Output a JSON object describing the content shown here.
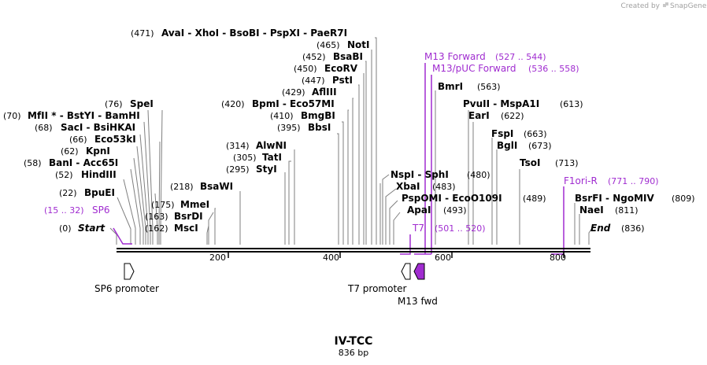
{
  "credit": {
    "text": "Created by",
    "brand": "SnapGene"
  },
  "plasmid": {
    "name": "IV-TCC",
    "length": "836 bp"
  },
  "axis": {
    "ticks": [
      "200",
      "400",
      "600",
      "800"
    ]
  },
  "sites": [
    {
      "pos": "(0)",
      "label": "Start"
    },
    {
      "pos": "(15 .. 32)",
      "label": "SP6"
    },
    {
      "pos": "(22)",
      "label": "BpuEI"
    },
    {
      "pos": "(52)",
      "label": "HindIII"
    },
    {
      "pos": "(58)",
      "label": "BanI  -  Acc65I"
    },
    {
      "pos": "(62)",
      "label": "KpnI"
    },
    {
      "pos": "(66)",
      "label": "Eco53kI"
    },
    {
      "pos": "(68)",
      "label": "SacI  -  BsiHKAI"
    },
    {
      "pos": "(70)",
      "label": "MfII *  -  BstYI  -  BamHI"
    },
    {
      "pos": "(76)",
      "label": "SpeI"
    },
    {
      "pos": "(162)",
      "label": "MscI"
    },
    {
      "pos": "(163)",
      "label": "BsrDI"
    },
    {
      "pos": "(175)",
      "label": "MmeI"
    },
    {
      "pos": "(218)",
      "label": "BsaWI"
    },
    {
      "pos": "(295)",
      "label": "StyI"
    },
    {
      "pos": "(305)",
      "label": "TatI"
    },
    {
      "pos": "(314)",
      "label": "AlwNI"
    },
    {
      "pos": "(395)",
      "label": "BbsI"
    },
    {
      "pos": "(410)",
      "label": "BmgBI"
    },
    {
      "pos": "(420)",
      "label": "BpmI  -  Eco57MI"
    },
    {
      "pos": "(429)",
      "label": "AflIII"
    },
    {
      "pos": "(447)",
      "label": "PstI"
    },
    {
      "pos": "(450)",
      "label": "EcoRV"
    },
    {
      "pos": "(452)",
      "label": "BsaBI"
    },
    {
      "pos": "(465)",
      "label": "NotI"
    },
    {
      "pos": "(471)",
      "label": "AvaI  -  XhoI  -  BsoBI  -  PspXI  -  PaeR7I"
    },
    {
      "pos": "(480)",
      "label": "NspI  -  SphI"
    },
    {
      "pos": "(483)",
      "label": "XbaI"
    },
    {
      "pos": "(489)",
      "label": "PspOMI  -  EcoO109I"
    },
    {
      "pos": "(493)",
      "label": "ApaI"
    },
    {
      "pos": "(501 .. 520)",
      "label": "T7"
    },
    {
      "pos": "(527 .. 544)",
      "label": "M13 Forward"
    },
    {
      "pos": "(536 .. 558)",
      "label": "M13/pUC Forward"
    },
    {
      "pos": "(563)",
      "label": "BmrI"
    },
    {
      "pos": "(613)",
      "label": "PvuII  -  MspA1I"
    },
    {
      "pos": "(622)",
      "label": "EarI"
    },
    {
      "pos": "(663)",
      "label": "FspI"
    },
    {
      "pos": "(673)",
      "label": "BglI"
    },
    {
      "pos": "(713)",
      "label": "TsoI"
    },
    {
      "pos": "(771 .. 790)",
      "label": "F1ori-R"
    },
    {
      "pos": "(809)",
      "label": "BsrFI  -  NgoMIV"
    },
    {
      "pos": "(811)",
      "label": "NaeI"
    },
    {
      "pos": "(836)",
      "label": "End"
    }
  ],
  "features": [
    {
      "label": "SP6 promoter",
      "color": "#ffffff"
    },
    {
      "label": "T7 promoter",
      "color": "#ffffff"
    },
    {
      "label": "M13 fwd",
      "color": "#a02cd0"
    }
  ],
  "colors": {
    "primer": "#a02cd0",
    "leader": "#7f7f7f",
    "feature_fill": "#a02cd0"
  }
}
